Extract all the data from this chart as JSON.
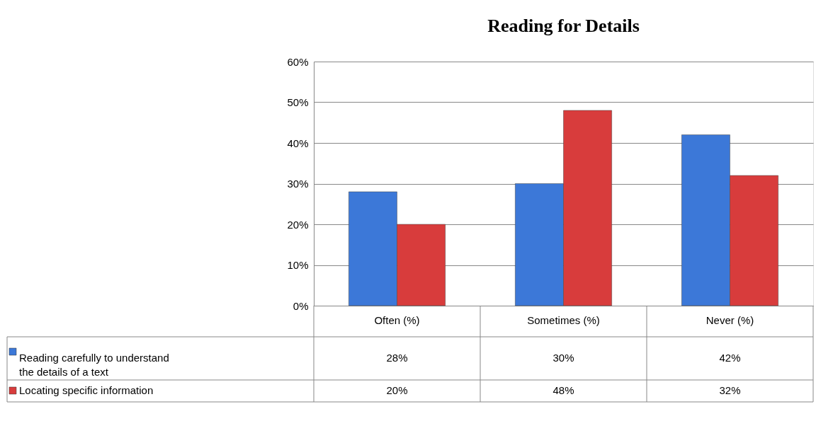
{
  "chart_data": {
    "type": "bar",
    "title": "Reading for Details",
    "categories": [
      "Often (%)",
      "Sometimes (%)",
      "Never (%)"
    ],
    "series": [
      {
        "name": "Reading carefully to understand the details of a text",
        "color": "#3c78d8",
        "values": [
          28,
          30,
          42
        ],
        "value_labels": [
          "28%",
          "30%",
          "42%"
        ]
      },
      {
        "name": "Locating specific information",
        "color": "#d83c3c",
        "values": [
          20,
          48,
          32
        ],
        "value_labels": [
          "20%",
          "48%",
          "32%"
        ]
      }
    ],
    "ylim": [
      0,
      60
    ],
    "yticks": [
      {
        "value": 0,
        "label": "0%"
      },
      {
        "value": 10,
        "label": "10%"
      },
      {
        "value": 20,
        "label": "20%"
      },
      {
        "value": 30,
        "label": "30%"
      },
      {
        "value": 40,
        "label": "40%"
      },
      {
        "value": 50,
        "label": "50%"
      },
      {
        "value": 60,
        "label": "60%"
      }
    ],
    "grid": "y",
    "legend": "bottom"
  }
}
